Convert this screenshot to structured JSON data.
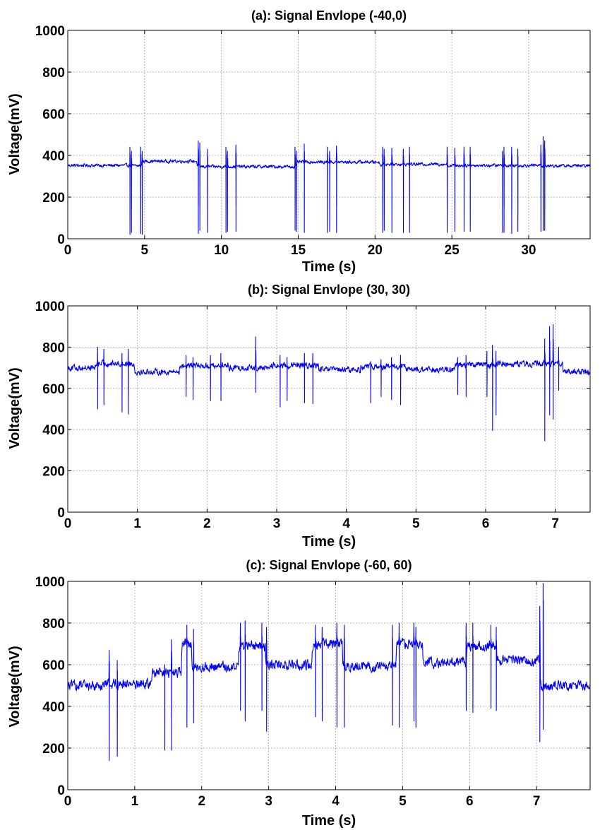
{
  "chart_data": [
    {
      "type": "line",
      "title": "(a): Signal Envlope (-40,0)",
      "xlabel": "Time (s)",
      "ylabel": "Voltage(mV)",
      "xlim": [
        0,
        34
      ],
      "ylim": [
        0,
        1000
      ],
      "xticks": [
        0,
        5,
        10,
        15,
        20,
        25,
        30
      ],
      "yticks": [
        0,
        200,
        400,
        600,
        800,
        1000
      ],
      "grid": true,
      "color": "#0000ff",
      "baseline_segments": [
        [
          0,
          4.0,
          352
        ],
        [
          4.8,
          8.4,
          372
        ],
        [
          8.5,
          14.8,
          346
        ],
        [
          14.9,
          20.3,
          368
        ],
        [
          20.4,
          24.7,
          358
        ],
        [
          24.8,
          30.8,
          352
        ],
        [
          31.2,
          34,
          350
        ]
      ],
      "noise": 12,
      "dips": [
        [
          4.05,
          20,
          440
        ],
        [
          4.15,
          30,
          420
        ],
        [
          4.75,
          25,
          440
        ],
        [
          4.85,
          20,
          420
        ],
        [
          8.5,
          25,
          470
        ],
        [
          8.6,
          40,
          460
        ],
        [
          9.1,
          30,
          430
        ],
        [
          10.3,
          30,
          440
        ],
        [
          10.4,
          35,
          420
        ],
        [
          10.95,
          35,
          450
        ],
        [
          14.8,
          40,
          440
        ],
        [
          14.9,
          35,
          420
        ],
        [
          15.4,
          30,
          455
        ],
        [
          16.9,
          30,
          440
        ],
        [
          17.05,
          35,
          420
        ],
        [
          17.5,
          30,
          445
        ],
        [
          20.5,
          30,
          440
        ],
        [
          20.6,
          40,
          430
        ],
        [
          21.1,
          30,
          435
        ],
        [
          21.85,
          30,
          430
        ],
        [
          22.25,
          30,
          440
        ],
        [
          24.7,
          30,
          440
        ],
        [
          25.2,
          35,
          435
        ],
        [
          25.8,
          35,
          440
        ],
        [
          26.2,
          35,
          440
        ],
        [
          28.3,
          30,
          420
        ],
        [
          28.4,
          30,
          440
        ],
        [
          28.9,
          25,
          440
        ],
        [
          29.3,
          35,
          430
        ],
        [
          30.8,
          35,
          450
        ],
        [
          30.95,
          40,
          490
        ],
        [
          31.05,
          40,
          470
        ]
      ]
    },
    {
      "type": "line",
      "title": "(b): Signal Envlope (30, 30)",
      "xlabel": "Time (s)",
      "ylabel": "Voltage(mV)",
      "xlim": [
        0,
        7.5
      ],
      "ylim": [
        0,
        1000
      ],
      "xticks": [
        0,
        1,
        2,
        3,
        4,
        5,
        6,
        7
      ],
      "yticks": [
        0,
        200,
        400,
        600,
        800,
        1000
      ],
      "grid": true,
      "color": "#0000ff",
      "baseline_segments": [
        [
          0,
          0.4,
          700
        ],
        [
          0.4,
          0.95,
          720
        ],
        [
          0.95,
          1.6,
          680
        ],
        [
          1.6,
          2.3,
          710
        ],
        [
          2.3,
          2.9,
          700
        ],
        [
          2.9,
          3.6,
          710
        ],
        [
          3.6,
          4.2,
          690
        ],
        [
          4.2,
          4.85,
          705
        ],
        [
          4.85,
          5.55,
          690
        ],
        [
          5.55,
          6.15,
          715
        ],
        [
          6.15,
          6.8,
          720
        ],
        [
          6.8,
          7.1,
          720
        ],
        [
          7.1,
          7.5,
          680
        ]
      ],
      "noise": 22,
      "dips": [
        [
          0.43,
          500,
          800
        ],
        [
          0.52,
          520,
          790
        ],
        [
          0.78,
          485,
          770
        ],
        [
          0.87,
          475,
          790
        ],
        [
          1.7,
          560,
          760
        ],
        [
          1.8,
          545,
          750
        ],
        [
          2.05,
          540,
          760
        ],
        [
          2.2,
          540,
          770
        ],
        [
          2.7,
          580,
          850
        ],
        [
          3.05,
          510,
          760
        ],
        [
          3.15,
          540,
          750
        ],
        [
          3.4,
          530,
          770
        ],
        [
          3.52,
          525,
          770
        ],
        [
          4.35,
          530,
          730
        ],
        [
          4.5,
          560,
          740
        ],
        [
          4.65,
          545,
          750
        ],
        [
          4.78,
          520,
          760
        ],
        [
          5.6,
          570,
          750
        ],
        [
          5.72,
          560,
          760
        ],
        [
          6.02,
          560,
          780
        ],
        [
          6.1,
          395,
          810
        ],
        [
          6.15,
          470,
          780
        ],
        [
          6.85,
          345,
          840
        ],
        [
          6.92,
          470,
          900
        ],
        [
          6.97,
          450,
          910
        ],
        [
          7.05,
          590,
          800
        ]
      ]
    },
    {
      "type": "line",
      "title": "(c): Signal Envlope (-60, 60)",
      "xlabel": "Time (s)",
      "ylabel": "Voltage(mV)",
      "xlim": [
        0,
        7.8
      ],
      "ylim": [
        0,
        1000
      ],
      "xticks": [
        0,
        1,
        2,
        3,
        4,
        5,
        6,
        7
      ],
      "yticks": [
        0,
        200,
        400,
        600,
        800,
        1000
      ],
      "grid": true,
      "color": "#0000ff",
      "baseline_segments": [
        [
          0,
          0.55,
          500
        ],
        [
          0.55,
          1.25,
          510
        ],
        [
          1.25,
          1.7,
          560
        ],
        [
          1.7,
          1.85,
          700
        ],
        [
          1.85,
          2.55,
          590
        ],
        [
          2.55,
          2.95,
          690
        ],
        [
          2.95,
          3.65,
          600
        ],
        [
          3.65,
          4.1,
          700
        ],
        [
          4.1,
          4.9,
          590
        ],
        [
          4.9,
          5.3,
          700
        ],
        [
          5.3,
          5.95,
          610
        ],
        [
          5.95,
          6.4,
          690
        ],
        [
          6.4,
          7.05,
          620
        ],
        [
          7.05,
          7.8,
          500
        ]
      ],
      "noise": 35,
      "dips": [
        [
          0.62,
          140,
          670
        ],
        [
          0.74,
          160,
          620
        ],
        [
          1.45,
          190,
          600
        ],
        [
          1.55,
          190,
          720
        ],
        [
          1.78,
          300,
          790
        ],
        [
          1.88,
          320,
          770
        ],
        [
          2.58,
          380,
          800
        ],
        [
          2.65,
          330,
          810
        ],
        [
          2.9,
          380,
          800
        ],
        [
          2.97,
          280,
          780
        ],
        [
          3.7,
          350,
          790
        ],
        [
          3.8,
          330,
          780
        ],
        [
          4.02,
          300,
          800
        ],
        [
          4.13,
          300,
          790
        ],
        [
          4.85,
          310,
          790
        ],
        [
          4.95,
          300,
          800
        ],
        [
          5.17,
          330,
          800
        ],
        [
          5.2,
          300,
          780
        ],
        [
          5.95,
          380,
          800
        ],
        [
          6.05,
          370,
          800
        ],
        [
          6.32,
          390,
          790
        ],
        [
          6.4,
          380,
          780
        ],
        [
          7.05,
          230,
          880
        ],
        [
          7.1,
          290,
          990
        ]
      ]
    }
  ]
}
